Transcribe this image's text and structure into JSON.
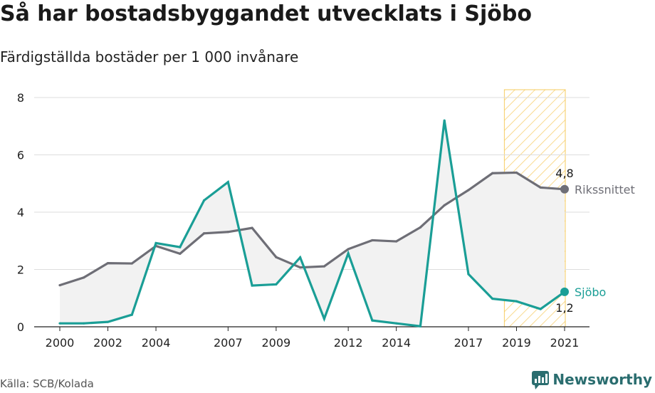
{
  "title": "Så har bostadsbyggandet utvecklats i Sjöbo",
  "subtitle": "Färdigställda bostäder per 1 000 invånare",
  "source": "Källa: SCB/Kolada",
  "brand": "Newsworthy",
  "colors": {
    "sjobo": "#1a9e96",
    "riks": "#6e6e76",
    "highlight": "#f5c242",
    "grid": "#dddddd",
    "fill": "#f2f2f2"
  },
  "chart_data": {
    "type": "line",
    "x": [
      2000,
      2001,
      2002,
      2003,
      2004,
      2005,
      2006,
      2007,
      2008,
      2009,
      2010,
      2011,
      2012,
      2013,
      2014,
      2015,
      2016,
      2017,
      2018,
      2019,
      2020,
      2021
    ],
    "xticks": [
      2000,
      2002,
      2004,
      2007,
      2009,
      2012,
      2014,
      2017,
      2019,
      2021
    ],
    "yticks": [
      0,
      2,
      4,
      6,
      8
    ],
    "ylim": [
      0,
      8
    ],
    "xlim": [
      2000,
      2021
    ],
    "highlight_range": [
      2019,
      2021
    ],
    "series": [
      {
        "name": "Rikssnittet",
        "key": "riks",
        "end_label": "4,8",
        "values": [
          1.45,
          1.72,
          2.22,
          2.21,
          2.82,
          2.55,
          3.26,
          3.31,
          3.45,
          2.43,
          2.07,
          2.11,
          2.71,
          3.02,
          2.98,
          3.47,
          4.24,
          4.77,
          5.36,
          5.38,
          4.86,
          4.8
        ]
      },
      {
        "name": "Sjöbo",
        "key": "sjobo",
        "end_label": "1,2",
        "values": [
          0.12,
          0.12,
          0.17,
          0.42,
          2.92,
          2.78,
          4.41,
          5.05,
          1.44,
          1.48,
          2.42,
          0.28,
          2.56,
          0.22,
          0.12,
          0.02,
          7.2,
          1.84,
          0.98,
          0.89,
          0.62,
          1.22
        ]
      }
    ]
  }
}
